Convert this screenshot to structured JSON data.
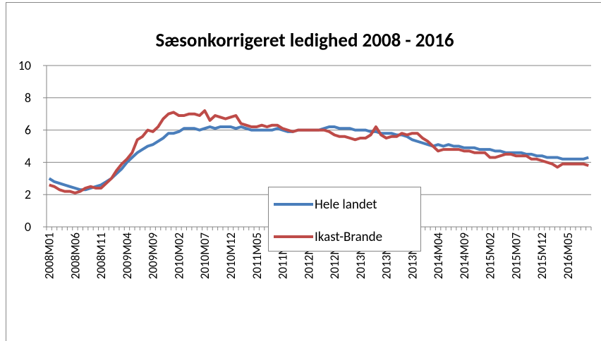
{
  "chart_data": {
    "type": "line",
    "title": "Sæsonkorrigeret ledighed 2008 - 2016",
    "categories": [
      "2008M01",
      null,
      null,
      null,
      null,
      "2008M06",
      null,
      null,
      null,
      null,
      "2008M11",
      null,
      null,
      null,
      null,
      "2009M04",
      null,
      null,
      null,
      null,
      "2009M09",
      null,
      null,
      null,
      null,
      "2010M02",
      null,
      null,
      null,
      null,
      "2010M07",
      null,
      null,
      null,
      null,
      "2010M12",
      null,
      null,
      null,
      null,
      "2011M05",
      null,
      null,
      null,
      null,
      "2011M10",
      null,
      null,
      null,
      null,
      "2012M03",
      null,
      null,
      null,
      null,
      "2012M08",
      null,
      null,
      null,
      null,
      "2013M01",
      null,
      null,
      null,
      null,
      "2013M06",
      null,
      null,
      null,
      null,
      "2013M11",
      null,
      null,
      null,
      null,
      "2014M04",
      null,
      null,
      null,
      null,
      "2014M09",
      null,
      null,
      null,
      null,
      "2015M02",
      null,
      null,
      null,
      null,
      "2015M07",
      null,
      null,
      null,
      null,
      "2015M12",
      null,
      null,
      null,
      null,
      "2016M05",
      null,
      null,
      null,
      null
    ],
    "series": [
      {
        "name": "Hele landet",
        "color": "#4a7ebb",
        "values": [
          3.0,
          2.8,
          2.7,
          2.6,
          2.5,
          2.4,
          2.3,
          2.3,
          2.4,
          2.5,
          2.6,
          2.8,
          3.0,
          3.3,
          3.6,
          4.0,
          4.3,
          4.6,
          4.8,
          5.0,
          5.1,
          5.3,
          5.5,
          5.8,
          5.8,
          5.9,
          6.1,
          6.1,
          6.1,
          6.0,
          6.1,
          6.2,
          6.1,
          6.2,
          6.2,
          6.2,
          6.1,
          6.2,
          6.1,
          6.0,
          6.0,
          6.0,
          6.0,
          6.0,
          6.1,
          6.0,
          5.9,
          5.9,
          6.0,
          6.0,
          6.0,
          6.0,
          6.0,
          6.1,
          6.2,
          6.2,
          6.1,
          6.1,
          6.1,
          6.0,
          6.0,
          6.0,
          5.9,
          5.9,
          5.8,
          5.8,
          5.8,
          5.7,
          5.7,
          5.6,
          5.4,
          5.3,
          5.2,
          5.1,
          5.0,
          5.1,
          5.0,
          5.1,
          5.0,
          5.0,
          4.9,
          4.9,
          4.9,
          4.8,
          4.8,
          4.8,
          4.7,
          4.7,
          4.6,
          4.6,
          4.6,
          4.6,
          4.5,
          4.5,
          4.4,
          4.4,
          4.3,
          4.3,
          4.3,
          4.2,
          4.2,
          4.2,
          4.2,
          4.2,
          4.3
        ]
      },
      {
        "name": "Ikast-Brande",
        "color": "#be4b48",
        "values": [
          2.6,
          2.5,
          2.3,
          2.2,
          2.2,
          2.1,
          2.2,
          2.4,
          2.5,
          2.4,
          2.4,
          2.7,
          3.0,
          3.5,
          3.9,
          4.2,
          4.6,
          5.4,
          5.6,
          6.0,
          5.9,
          6.2,
          6.7,
          7.0,
          7.1,
          6.9,
          6.9,
          7.0,
          7.0,
          6.9,
          7.2,
          6.6,
          6.9,
          6.8,
          6.7,
          6.8,
          6.9,
          6.4,
          6.3,
          6.2,
          6.2,
          6.3,
          6.2,
          6.3,
          6.3,
          6.1,
          6.0,
          5.9,
          6.0,
          6.0,
          6.0,
          6.0,
          6.0,
          6.0,
          5.9,
          5.7,
          5.6,
          5.6,
          5.5,
          5.4,
          5.5,
          5.5,
          5.7,
          6.2,
          5.7,
          5.5,
          5.6,
          5.6,
          5.8,
          5.7,
          5.8,
          5.8,
          5.5,
          5.3,
          5.0,
          4.7,
          4.8,
          4.8,
          4.8,
          4.8,
          4.7,
          4.7,
          4.6,
          4.6,
          4.6,
          4.3,
          4.3,
          4.4,
          4.5,
          4.5,
          4.4,
          4.4,
          4.4,
          4.2,
          4.2,
          4.1,
          4.0,
          3.9,
          3.7,
          3.9,
          3.9,
          3.9,
          3.9,
          3.9,
          3.8
        ]
      }
    ],
    "ylim": [
      0,
      10
    ],
    "yticks": [
      0,
      2,
      4,
      6,
      8,
      10
    ],
    "grid": true
  }
}
